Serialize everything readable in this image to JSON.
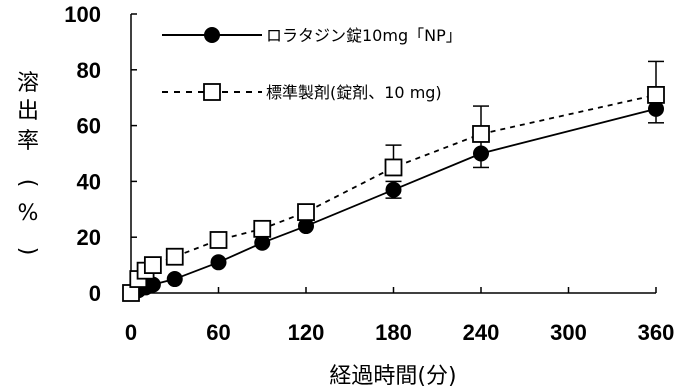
{
  "chart_data": {
    "type": "line",
    "xlabel": "経過時間(分)",
    "ylabel_chars": [
      "溶",
      "出",
      "率",
      "(",
      "%",
      ")"
    ],
    "xlim": [
      0,
      360
    ],
    "ylim": [
      0,
      100
    ],
    "x_ticks": [
      0,
      60,
      120,
      180,
      240,
      300,
      360
    ],
    "y_ticks": [
      0,
      20,
      40,
      60,
      80,
      100
    ],
    "grid": false,
    "legend_position": "top-left",
    "series": [
      {
        "name": "ロラタジン錠10mg「NP」",
        "marker": "filled-circle",
        "line_style": "solid",
        "color": "#000000",
        "x": [
          0,
          5,
          10,
          15,
          30,
          60,
          90,
          120,
          180,
          240,
          360
        ],
        "y": [
          0,
          1,
          2,
          3,
          5,
          11,
          18,
          24,
          37,
          50,
          66
        ],
        "error": [
          0,
          0,
          0,
          0,
          0,
          0,
          0,
          0,
          3,
          5,
          5
        ]
      },
      {
        "name": "標準製剤(錠剤、10 mg)",
        "marker": "open-square",
        "line_style": "dashed",
        "color": "#000000",
        "x": [
          0,
          5,
          10,
          15,
          30,
          60,
          90,
          120,
          180,
          240,
          360
        ],
        "y": [
          0,
          5,
          8,
          10,
          13,
          19,
          23,
          29,
          45,
          57,
          71
        ],
        "error": [
          0,
          0,
          0,
          0,
          0,
          0,
          0,
          0,
          8,
          10,
          12
        ]
      }
    ]
  }
}
